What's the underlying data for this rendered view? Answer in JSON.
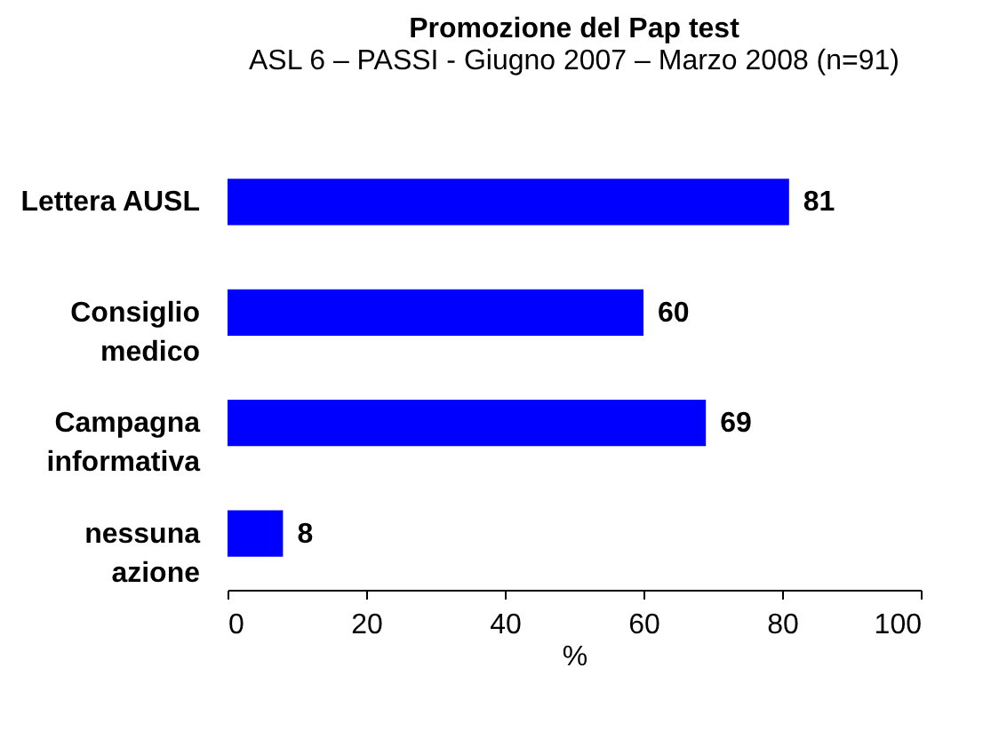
{
  "chart_data": {
    "type": "bar",
    "orientation": "horizontal",
    "title": "Promozione del Pap test",
    "subtitle": "ASL 6 – PASSI - Giugno 2007 – Marzo 2008 (n=91)",
    "categories": [
      "Lettera AUSL",
      "Consiglio medico",
      "Campagna informativa",
      "nessuna azione"
    ],
    "values": [
      81,
      60,
      69,
      8
    ],
    "color": "#0000ff",
    "xlim": [
      0,
      100
    ],
    "xticks": [
      0,
      20,
      40,
      60,
      80,
      100
    ],
    "xlabel": "%",
    "grid": false,
    "data_labels": true
  }
}
